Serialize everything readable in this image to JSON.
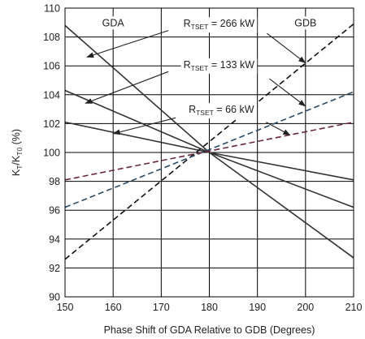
{
  "chart_data": {
    "type": "line",
    "xlabel": "Phase Shift of GDA Relative to GDB (Degrees)",
    "ylabel": {
      "main": "K",
      "sub1": "T",
      "mid": "/K",
      "sub2": "T0",
      "unit": " (%)"
    },
    "xlim": [
      150,
      210
    ],
    "ylim": [
      90,
      110
    ],
    "xticks": [
      150,
      160,
      170,
      180,
      190,
      200,
      210
    ],
    "yticks": [
      90,
      92,
      94,
      96,
      98,
      100,
      102,
      104,
      106,
      108,
      110
    ],
    "grid": true,
    "region_labels": [
      {
        "text": "GDA",
        "x": 160,
        "y": 109
      },
      {
        "text": "GDB",
        "x": 200,
        "y": 109
      }
    ],
    "series": [
      {
        "name": "GDA 266 kW",
        "style": "solid",
        "color": "#333333",
        "x": [
          150,
          180
        ],
        "y": [
          108.8,
          100
        ]
      },
      {
        "name": "GDA 133 kW",
        "style": "solid",
        "color": "#333333",
        "x": [
          150,
          180
        ],
        "y": [
          104.3,
          100
        ]
      },
      {
        "name": "GDA 66 kW",
        "style": "solid",
        "color": "#333333",
        "x": [
          150,
          180
        ],
        "y": [
          102.1,
          100
        ]
      },
      {
        "name": "GDA 266 kW continuation",
        "style": "solid",
        "color": "#333333",
        "x": [
          180,
          210
        ],
        "y": [
          100,
          92.7
        ]
      },
      {
        "name": "GDA 133 kW continuation",
        "style": "solid",
        "color": "#333333",
        "x": [
          180,
          210
        ],
        "y": [
          100,
          96.2
        ]
      },
      {
        "name": "GDA 66 kW continuation",
        "style": "solid",
        "color": "#333333",
        "x": [
          180,
          210
        ],
        "y": [
          100,
          98.1
        ]
      },
      {
        "name": "GDB 266 kW",
        "style": "dashed",
        "color": "#111111",
        "x": [
          150,
          210
        ],
        "y": [
          92.6,
          108.9
        ]
      },
      {
        "name": "GDB 133 kW",
        "style": "dashed",
        "color": "#2b4a63",
        "x": [
          150,
          210
        ],
        "y": [
          96.2,
          104.2
        ]
      },
      {
        "name": "GDB 66 kW",
        "style": "dashed",
        "color": "#6b2740",
        "x": [
          150,
          210
        ],
        "y": [
          98.1,
          102.1
        ]
      }
    ],
    "annotations": [
      {
        "prefix": "R",
        "sub": "TSET",
        "suffix": " = 266 kW",
        "text_x": 182,
        "text_y": 108.95,
        "arrows": [
          {
            "from": [
              171.5,
              108.45
            ],
            "to": [
              154.5,
              106.6
            ]
          },
          {
            "from": [
              192.0,
              108.25
            ],
            "to": [
              200.0,
              106.2
            ]
          }
        ]
      },
      {
        "prefix": "R",
        "sub": "TSET",
        "suffix": " = 133 kW",
        "text_x": 182,
        "text_y": 106.1,
        "arrows": [
          {
            "from": [
              171.5,
              105.6
            ],
            "to": [
              154.2,
              103.4
            ]
          },
          {
            "from": [
              192.5,
              105.1
            ],
            "to": [
              200.0,
              103.2
            ]
          }
        ]
      },
      {
        "prefix": "R",
        "sub": "TSET",
        "suffix": " = 66 kW",
        "text_x": 182.5,
        "text_y": 103.0,
        "arrows": [
          {
            "from": [
              173.0,
              102.4
            ],
            "to": [
              160.0,
              101.3
            ]
          },
          {
            "from": [
              191.8,
              102.1
            ],
            "to": [
              196.8,
              101.2
            ]
          }
        ]
      }
    ]
  }
}
